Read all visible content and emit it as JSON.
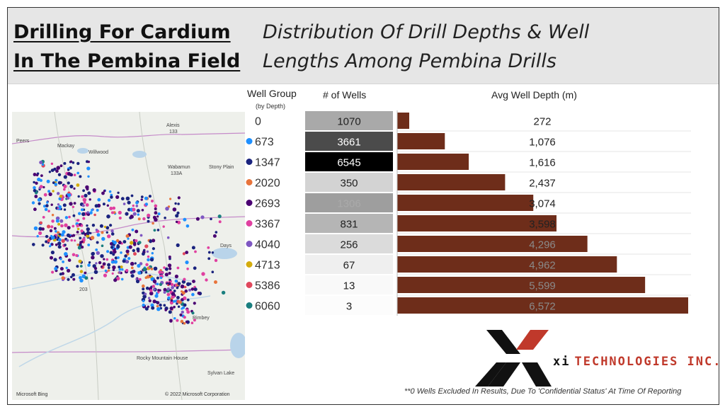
{
  "header": {
    "title_line1": "Drilling For Cardium",
    "title_line2": "In The Pembina Field",
    "subtitle_line1": "Distribution Of Drill Depths & Well",
    "subtitle_line2": "Lengths Among Pembina Drills"
  },
  "map": {
    "places": {
      "alexis": "Alexis",
      "alexis_num": "133",
      "peers": "Peers",
      "mackay": "Mackay",
      "willwood": "Willwood",
      "wabamun": "Wabamun",
      "wabamun_num": "133A",
      "stony_plain": "Stony Plain",
      "rimbey": "Rimbey",
      "rocky": "Rocky Mountain House",
      "sylvan": "Sylvan Lake",
      "hwy": "203",
      "lake_days": "Days"
    },
    "bing_label": "Microsoft Bing",
    "copyright": "© 2022 Microsoft Corporation"
  },
  "table": {
    "well_group_label": "Well Group",
    "well_group_sublabel": "(by Depth)",
    "wells_label": "# of Wells",
    "depth_label": "Avg Well Depth (m)"
  },
  "chart_data": {
    "type": "bar",
    "title": "Avg Well Depth (m)",
    "categories": [
      "0",
      "673",
      "1347",
      "2020",
      "2693",
      "3367",
      "4040",
      "4713",
      "5386",
      "6060"
    ],
    "wells": [
      1070,
      3661,
      6545,
      350,
      1306,
      831,
      256,
      67,
      13,
      3
    ],
    "wells_labels": [
      "1070",
      "3661",
      "6545",
      "350",
      "1306",
      "831",
      "256",
      "67",
      "13",
      "3"
    ],
    "values": [
      272,
      1076,
      1616,
      2437,
      3074,
      3598,
      4296,
      4962,
      5599,
      6572
    ],
    "value_labels": [
      "272",
      "1,076",
      "1,616",
      "2,437",
      "3,074",
      "3,598",
      "4,296",
      "4,962",
      "5,599",
      "6,572"
    ],
    "group_colors": [
      "#ffffff",
      "#1e90ff",
      "#1a237e",
      "#e8743b",
      "#4a0072",
      "#e040a0",
      "#7e57c2",
      "#d4ac0d",
      "#e0485c",
      "#1a7f7f"
    ],
    "bar_color": "#6e2d1a"
  },
  "logo": {
    "brand_name": "TECHNOLOGIES INC.",
    "brand_prefix": "xi"
  },
  "footnote": "**0 Wells Excluded In Results, Due To 'Confidential Status' At Time Of Reporting"
}
